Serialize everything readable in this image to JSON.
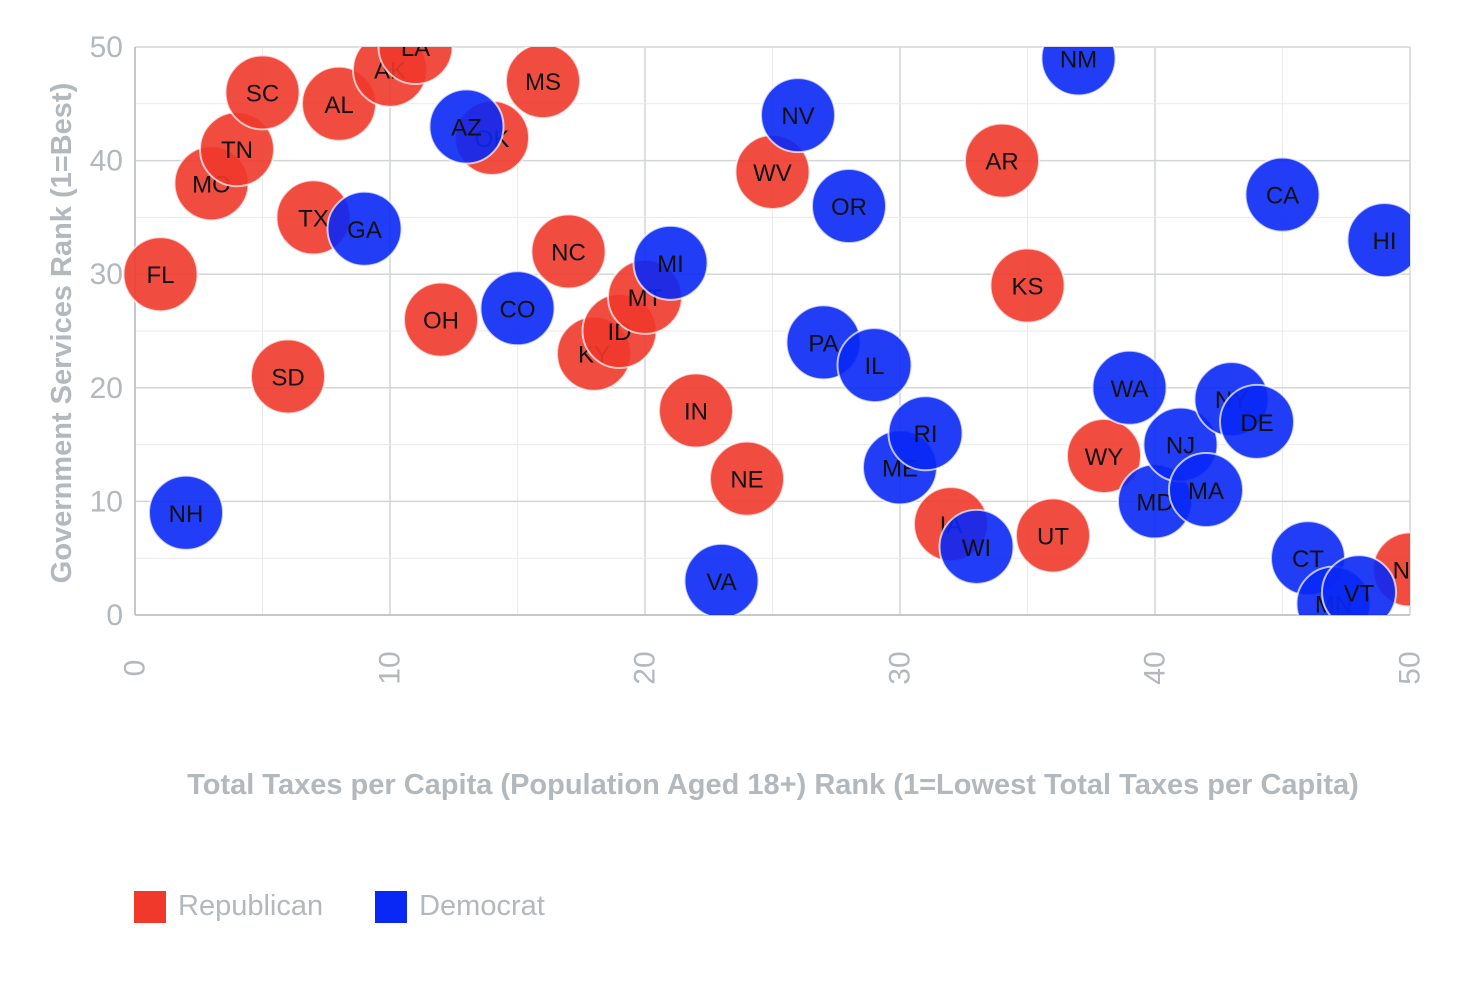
{
  "chart_data": {
    "type": "scatter",
    "xlabel": "Total Taxes per Capita (Population Aged 18+) Rank (1=Lowest Total Taxes per Capita)",
    "ylabel": "Government Services Rank (1=Best)",
    "xlim": [
      0,
      50
    ],
    "ylim": [
      0,
      50
    ],
    "x_ticks": [
      0,
      10,
      20,
      30,
      40,
      50
    ],
    "y_ticks": [
      0,
      10,
      20,
      30,
      40,
      50
    ],
    "grid": true,
    "legend_position": "bottom-left",
    "series": [
      {
        "name": "Republican",
        "color": "#f0392b",
        "points": [
          {
            "label": "FL",
            "x": 1,
            "y": 30
          },
          {
            "label": "MO",
            "x": 3,
            "y": 38
          },
          {
            "label": "TN",
            "x": 4,
            "y": 41
          },
          {
            "label": "SC",
            "x": 5,
            "y": 46
          },
          {
            "label": "SD",
            "x": 6,
            "y": 21
          },
          {
            "label": "TX",
            "x": 7,
            "y": 35
          },
          {
            "label": "AL",
            "x": 8,
            "y": 45
          },
          {
            "label": "AK",
            "x": 10,
            "y": 48
          },
          {
            "label": "LA",
            "x": 11,
            "y": 50
          },
          {
            "label": "OH",
            "x": 12,
            "y": 26
          },
          {
            "label": "OK",
            "x": 14,
            "y": 42
          },
          {
            "label": "MS",
            "x": 16,
            "y": 47
          },
          {
            "label": "NC",
            "x": 17,
            "y": 32
          },
          {
            "label": "KY",
            "x": 18,
            "y": 23
          },
          {
            "label": "ID",
            "x": 19,
            "y": 25
          },
          {
            "label": "MT",
            "x": 20,
            "y": 28
          },
          {
            "label": "IN",
            "x": 22,
            "y": 18
          },
          {
            "label": "NE",
            "x": 24,
            "y": 12
          },
          {
            "label": "WV",
            "x": 25,
            "y": 39
          },
          {
            "label": "IA",
            "x": 32,
            "y": 8
          },
          {
            "label": "AR",
            "x": 34,
            "y": 40
          },
          {
            "label": "KS",
            "x": 35,
            "y": 29
          },
          {
            "label": "UT",
            "x": 36,
            "y": 7
          },
          {
            "label": "WY",
            "x": 38,
            "y": 14
          },
          {
            "label": "ND",
            "x": 50,
            "y": 4
          }
        ]
      },
      {
        "name": "Democrat",
        "color": "#0a28f5",
        "points": [
          {
            "label": "NH",
            "x": 2,
            "y": 9
          },
          {
            "label": "GA",
            "x": 9,
            "y": 34
          },
          {
            "label": "AZ",
            "x": 13,
            "y": 43
          },
          {
            "label": "CO",
            "x": 15,
            "y": 27
          },
          {
            "label": "MI",
            "x": 21,
            "y": 31
          },
          {
            "label": "VA",
            "x": 23,
            "y": 3
          },
          {
            "label": "NV",
            "x": 26,
            "y": 44
          },
          {
            "label": "PA",
            "x": 27,
            "y": 24
          },
          {
            "label": "OR",
            "x": 28,
            "y": 36
          },
          {
            "label": "IL",
            "x": 29,
            "y": 22
          },
          {
            "label": "ME",
            "x": 30,
            "y": 13
          },
          {
            "label": "RI",
            "x": 31,
            "y": 16
          },
          {
            "label": "WI",
            "x": 33,
            "y": 6
          },
          {
            "label": "NM",
            "x": 37,
            "y": 49
          },
          {
            "label": "WA",
            "x": 39,
            "y": 20
          },
          {
            "label": "MD",
            "x": 40,
            "y": 10
          },
          {
            "label": "NJ",
            "x": 41,
            "y": 15
          },
          {
            "label": "MA",
            "x": 42,
            "y": 11
          },
          {
            "label": "NY",
            "x": 43,
            "y": 19
          },
          {
            "label": "DE",
            "x": 44,
            "y": 17
          },
          {
            "label": "CA",
            "x": 45,
            "y": 37
          },
          {
            "label": "CT",
            "x": 46,
            "y": 5
          },
          {
            "label": "MN",
            "x": 47,
            "y": 1
          },
          {
            "label": "VT",
            "x": 48,
            "y": 2
          },
          {
            "label": "HI",
            "x": 49,
            "y": 33
          }
        ]
      }
    ]
  },
  "legend": {
    "items": [
      {
        "label": "Republican",
        "color": "#f0392b"
      },
      {
        "label": "Democrat",
        "color": "#0a28f5"
      }
    ]
  }
}
